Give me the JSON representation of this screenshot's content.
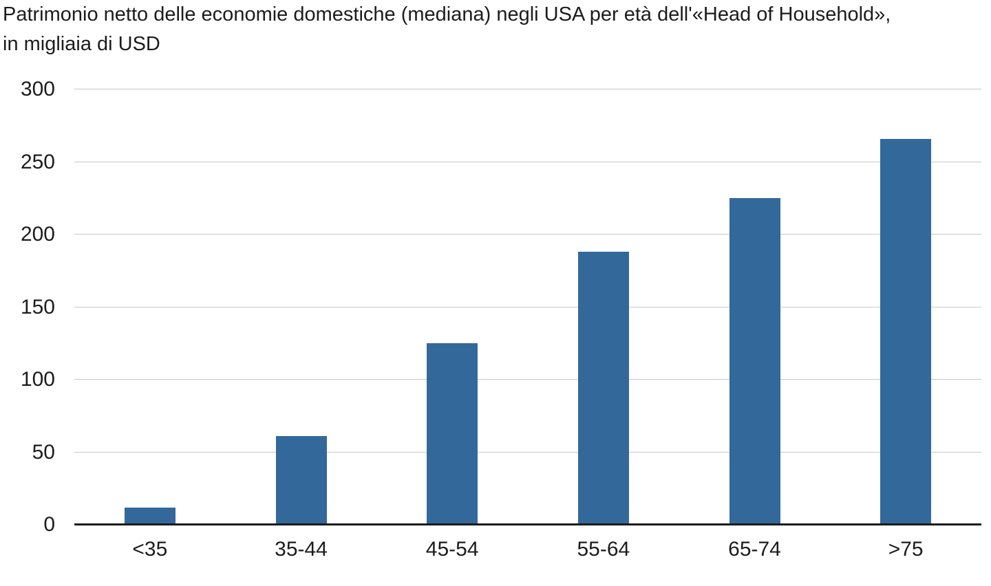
{
  "title": {
    "line1": "Patrimonio netto delle economie domestiche (mediana) negli USA per età dell'«Head of Household»,",
    "line2": "in migliaia di USD"
  },
  "chart_data": {
    "type": "bar",
    "title": "Patrimonio netto delle economie domestiche (mediana) negli USA per età dell'«Head of Household», in migliaia di USD",
    "subtitle": "in migliaia di USD",
    "categories": [
      "<35",
      "35-44",
      "45-54",
      "55-64",
      "65-74",
      ">75"
    ],
    "values": [
      11,
      60,
      124,
      187,
      224,
      265
    ],
    "xlabel": "",
    "ylabel": "",
    "ylim": [
      0,
      300
    ],
    "yticks": [
      0,
      50,
      100,
      150,
      200,
      250,
      300
    ],
    "grid": true,
    "legend": "none"
  },
  "colors": {
    "bar": "#33689b",
    "gridline": "#c8c8c8",
    "axis": "#1a1a1a",
    "text": "#1c1c1c"
  }
}
